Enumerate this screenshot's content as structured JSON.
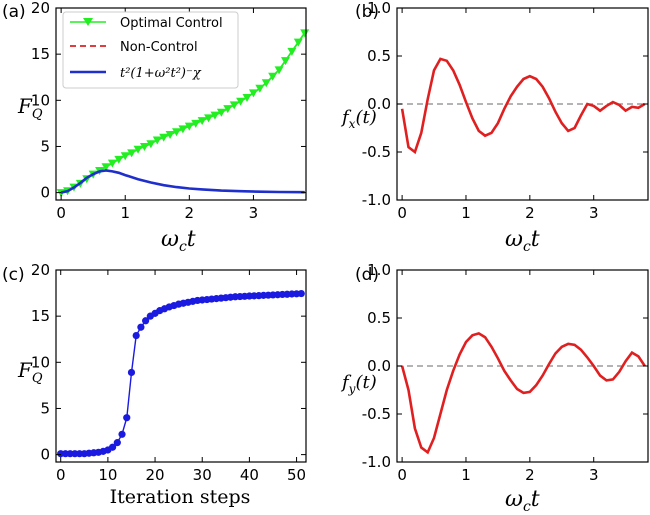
{
  "panel_labels": [
    "(a)",
    "(b)",
    "(c)",
    "(d)"
  ],
  "chart_data": [
    {
      "id": "a",
      "type": "line",
      "ylabel_main": "F",
      "ylabel_sub": "Q",
      "xlabel_main": "ω",
      "xlabel_sub": "c",
      "xlabel_tail": "t",
      "xlim": [
        -0.08,
        3.82
      ],
      "ylim": [
        -0.8,
        20
      ],
      "xticks": [
        0,
        1,
        2,
        3
      ],
      "yticks": [
        0,
        5,
        10,
        15,
        20
      ],
      "legend": {
        "position": "top-left",
        "entries": [
          "Optimal Control",
          "Non-Control",
          "t²(1+ω²t²)⁻χ"
        ]
      },
      "series": [
        {
          "name": "Optimal Control",
          "color": "#22ee22",
          "marker": "triangle-down",
          "x": [
            0.0,
            0.1,
            0.2,
            0.3,
            0.4,
            0.5,
            0.6,
            0.7,
            0.8,
            0.9,
            1.0,
            1.1,
            1.2,
            1.3,
            1.4,
            1.5,
            1.6,
            1.7,
            1.8,
            1.9,
            2.0,
            2.1,
            2.2,
            2.3,
            2.4,
            2.5,
            2.6,
            2.7,
            2.8,
            2.9,
            3.0,
            3.1,
            3.2,
            3.3,
            3.4,
            3.5,
            3.6,
            3.7,
            3.8
          ],
          "y": [
            0.0,
            0.2,
            0.6,
            1.0,
            1.5,
            2.0,
            2.4,
            2.8,
            3.2,
            3.6,
            4.0,
            4.3,
            4.7,
            5.0,
            5.3,
            5.7,
            6.0,
            6.3,
            6.6,
            6.9,
            7.2,
            7.5,
            7.8,
            8.1,
            8.4,
            8.7,
            9.1,
            9.5,
            9.9,
            10.3,
            10.8,
            11.3,
            11.9,
            12.6,
            13.3,
            14.3,
            15.3,
            16.3,
            17.3
          ]
        },
        {
          "name": "Non-Control",
          "color": "#dd2222",
          "style": "dashed",
          "x": [
            0.0,
            0.1,
            0.2,
            0.3,
            0.4,
            0.5,
            0.6,
            0.7,
            0.8,
            0.9,
            1.0,
            1.2,
            1.4,
            1.6,
            1.8,
            2.0,
            2.2,
            2.5,
            2.8,
            3.1,
            3.4,
            3.8
          ],
          "y": [
            0.0,
            0.15,
            0.55,
            1.05,
            1.6,
            2.0,
            2.3,
            2.4,
            2.3,
            2.15,
            1.9,
            1.45,
            1.1,
            0.8,
            0.6,
            0.45,
            0.35,
            0.22,
            0.15,
            0.1,
            0.07,
            0.05
          ]
        },
        {
          "name": "t²(1+ω²t²)⁻χ",
          "color": "#1f2fcc",
          "style": "solid",
          "x": [
            0.0,
            0.1,
            0.2,
            0.3,
            0.4,
            0.5,
            0.6,
            0.7,
            0.8,
            0.9,
            1.0,
            1.2,
            1.4,
            1.6,
            1.8,
            2.0,
            2.2,
            2.5,
            2.8,
            3.1,
            3.4,
            3.8
          ],
          "y": [
            0.0,
            0.15,
            0.55,
            1.05,
            1.6,
            2.0,
            2.3,
            2.4,
            2.3,
            2.15,
            1.9,
            1.45,
            1.1,
            0.8,
            0.6,
            0.45,
            0.35,
            0.22,
            0.15,
            0.1,
            0.07,
            0.05
          ]
        }
      ]
    },
    {
      "id": "b",
      "type": "line",
      "ylabel_main": "f",
      "ylabel_sub": "x",
      "ylabel_tail": "(t)",
      "xlabel_main": "ω",
      "xlabel_sub": "c",
      "xlabel_tail": "t",
      "xlim": [
        -0.08,
        3.85
      ],
      "ylim": [
        -1.0,
        1.0
      ],
      "xticks": [
        0,
        1,
        2,
        3
      ],
      "yticks": [
        -1.0,
        -0.5,
        0.0,
        0.5,
        1.0
      ],
      "yticklabels": [
        "-1.0",
        "-0.5",
        "0.0",
        "0.5",
        "1.0"
      ],
      "reference_line_y": 0.0,
      "series": [
        {
          "color": "#e02020",
          "x": [
            0.0,
            0.1,
            0.2,
            0.3,
            0.4,
            0.5,
            0.6,
            0.7,
            0.8,
            0.9,
            1.0,
            1.1,
            1.2,
            1.3,
            1.4,
            1.5,
            1.6,
            1.7,
            1.8,
            1.9,
            2.0,
            2.1,
            2.2,
            2.3,
            2.4,
            2.5,
            2.6,
            2.7,
            2.8,
            2.9,
            3.0,
            3.1,
            3.2,
            3.3,
            3.4,
            3.5,
            3.6,
            3.7,
            3.8
          ],
          "y": [
            -0.05,
            -0.45,
            -0.5,
            -0.3,
            0.05,
            0.35,
            0.47,
            0.45,
            0.35,
            0.2,
            0.02,
            -0.15,
            -0.28,
            -0.33,
            -0.3,
            -0.2,
            -0.05,
            0.08,
            0.18,
            0.26,
            0.29,
            0.26,
            0.18,
            0.06,
            -0.08,
            -0.2,
            -0.28,
            -0.25,
            -0.12,
            -0.0,
            -0.02,
            -0.07,
            -0.02,
            0.02,
            -0.01,
            -0.07,
            -0.03,
            -0.04,
            0.0
          ]
        }
      ]
    },
    {
      "id": "c",
      "type": "line",
      "ylabel_main": "F",
      "ylabel_sub": "Q",
      "xlabel": "Iteration steps",
      "xlim": [
        -1,
        52
      ],
      "ylim": [
        -0.8,
        20
      ],
      "xticks": [
        0,
        10,
        20,
        30,
        40,
        50
      ],
      "yticks": [
        0,
        5,
        10,
        15,
        20
      ],
      "series": [
        {
          "color": "#1a1ae0",
          "marker": "circle",
          "x": [
            0,
            1,
            2,
            3,
            4,
            5,
            6,
            7,
            8,
            9,
            10,
            11,
            12,
            13,
            14,
            15,
            16,
            17,
            18,
            19,
            20,
            21,
            22,
            23,
            24,
            25,
            26,
            27,
            28,
            29,
            30,
            31,
            32,
            33,
            34,
            35,
            36,
            37,
            38,
            39,
            40,
            41,
            42,
            43,
            44,
            45,
            46,
            47,
            48,
            49,
            50,
            51
          ],
          "y": [
            0.1,
            0.1,
            0.1,
            0.1,
            0.1,
            0.1,
            0.15,
            0.2,
            0.25,
            0.35,
            0.5,
            0.8,
            1.3,
            2.2,
            4.0,
            8.9,
            12.9,
            13.8,
            14.5,
            15.0,
            15.3,
            15.6,
            15.8,
            16.0,
            16.15,
            16.3,
            16.4,
            16.5,
            16.6,
            16.7,
            16.75,
            16.8,
            16.85,
            16.9,
            16.95,
            17.0,
            17.05,
            17.1,
            17.12,
            17.15,
            17.18,
            17.2,
            17.22,
            17.25,
            17.27,
            17.3,
            17.32,
            17.35,
            17.37,
            17.4,
            17.42,
            17.45
          ]
        }
      ]
    },
    {
      "id": "d",
      "type": "line",
      "ylabel_main": "f",
      "ylabel_sub": "y",
      "ylabel_tail": "(t)",
      "xlabel_main": "ω",
      "xlabel_sub": "c",
      "xlabel_tail": "t",
      "xlim": [
        -0.08,
        3.85
      ],
      "ylim": [
        -1.0,
        1.0
      ],
      "xticks": [
        0,
        1,
        2,
        3
      ],
      "yticks": [
        -1.0,
        -0.5,
        0.0,
        0.5,
        1.0
      ],
      "yticklabels": [
        "-1.0",
        "-0.5",
        "0.0",
        "0.5",
        "1.0"
      ],
      "reference_line_y": 0.0,
      "series": [
        {
          "color": "#e02020",
          "x": [
            0.0,
            0.1,
            0.2,
            0.3,
            0.4,
            0.5,
            0.6,
            0.7,
            0.8,
            0.9,
            1.0,
            1.1,
            1.2,
            1.3,
            1.4,
            1.5,
            1.6,
            1.7,
            1.8,
            1.9,
            2.0,
            2.1,
            2.2,
            2.3,
            2.4,
            2.5,
            2.6,
            2.7,
            2.8,
            2.9,
            3.0,
            3.1,
            3.2,
            3.3,
            3.4,
            3.5,
            3.6,
            3.7,
            3.8
          ],
          "y": [
            0.0,
            -0.25,
            -0.65,
            -0.85,
            -0.9,
            -0.75,
            -0.5,
            -0.25,
            -0.05,
            0.12,
            0.25,
            0.32,
            0.34,
            0.3,
            0.2,
            0.08,
            -0.05,
            -0.15,
            -0.24,
            -0.28,
            -0.27,
            -0.2,
            -0.1,
            0.02,
            0.13,
            0.2,
            0.23,
            0.22,
            0.17,
            0.09,
            0.0,
            -0.1,
            -0.15,
            -0.14,
            -0.06,
            0.05,
            0.14,
            0.1,
            0.0
          ]
        }
      ]
    }
  ]
}
